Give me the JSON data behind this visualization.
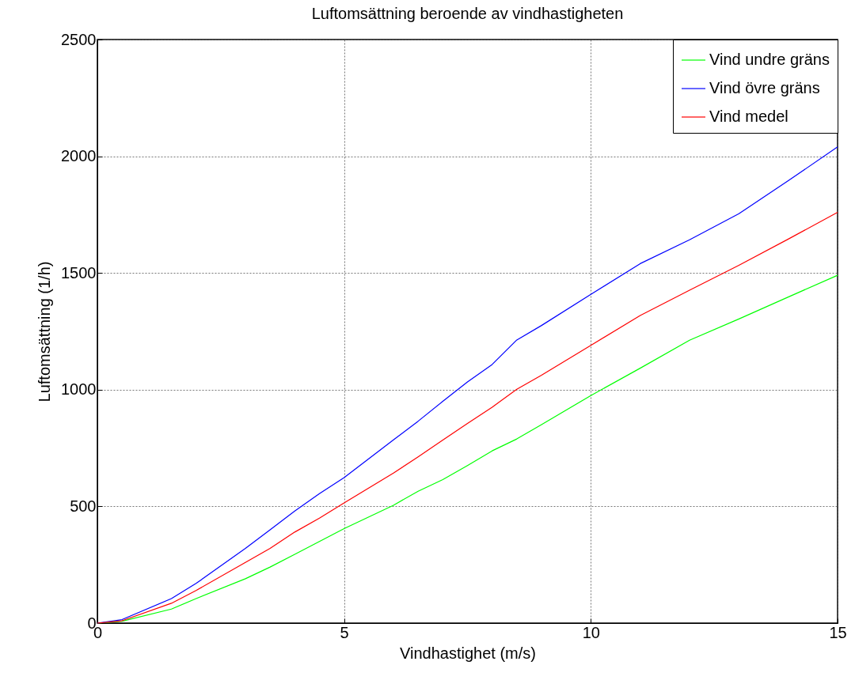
{
  "chart_data": {
    "type": "line",
    "title": "Luftomsättning beroende av vindhastigheten",
    "xlabel": "Vindhastighet (m/s)",
    "ylabel": "Luftomsättning (1/h)",
    "x": [
      0,
      0.5,
      1.5,
      2,
      3,
      3.5,
      4,
      4.5,
      5,
      6,
      6.5,
      7,
      7.5,
      8,
      8.5,
      9,
      10,
      11,
      12,
      13,
      14,
      15
    ],
    "series": [
      {
        "name": "Vind undre gräns",
        "color": "#00ff00",
        "values": [
          0,
          8,
          60,
          105,
          190,
          240,
          295,
          350,
          405,
          505,
          565,
          615,
          675,
          738,
          789,
          850,
          975,
          1092,
          1212,
          1303,
          1397,
          1490
        ]
      },
      {
        "name": "Vind övre gräns",
        "color": "#0000ff",
        "values": [
          0,
          15,
          105,
          170,
          320,
          400,
          480,
          555,
          623,
          785,
          865,
          950,
          1033,
          1108,
          1213,
          1275,
          1408,
          1540,
          1642,
          1754,
          1895,
          2040
        ]
      },
      {
        "name": "Vind medel",
        "color": "#ff0000",
        "values": [
          0,
          10,
          85,
          140,
          260,
          320,
          390,
          450,
          515,
          643,
          712,
          784,
          855,
          925,
          1002,
          1062,
          1190,
          1318,
          1426,
          1533,
          1645,
          1760
        ]
      }
    ],
    "xlim": [
      0,
      15
    ],
    "xticks": [
      0,
      5,
      10,
      15
    ],
    "ylim": [
      0,
      2500
    ],
    "yticks": [
      0,
      500,
      1000,
      1500,
      2000,
      2500
    ],
    "grid": true,
    "legend": "top right",
    "line_style": "solid"
  }
}
